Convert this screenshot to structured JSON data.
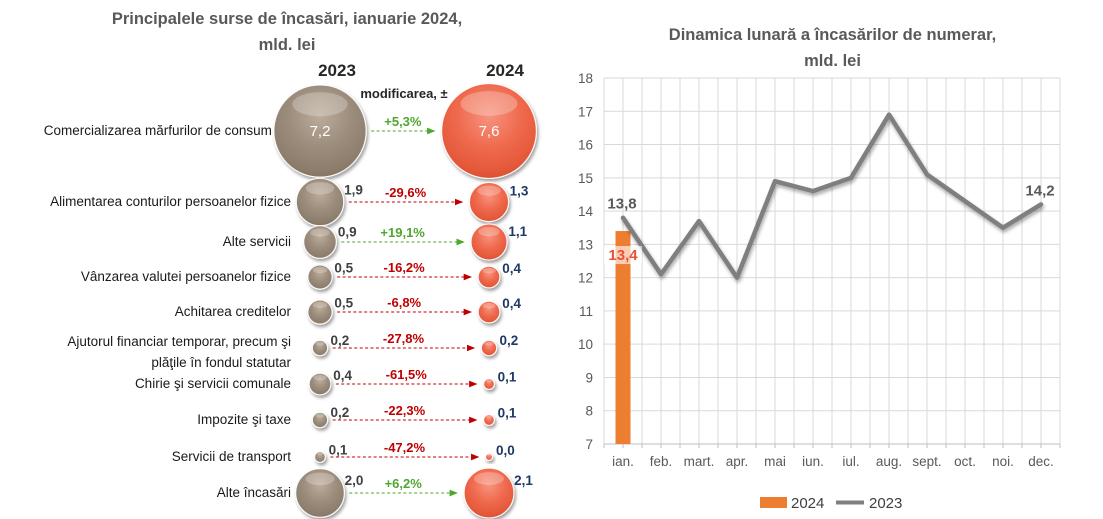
{
  "chart_data": [
    {
      "type": "bubble-comparison",
      "title_lines": [
        "Principalele surse de încasări, ianuarie 2024,",
        "mld. lei"
      ],
      "column_headers": [
        "2023",
        "2024"
      ],
      "change_header": "modificarea, ±",
      "colors": {
        "bubble_2023": "#9D8D7D",
        "bubble_2024": "#EF6A4E",
        "increase": "#4EA72E",
        "decrease": "#C00000",
        "value_2023_text": "#404040",
        "value_2024_text": "#1F3864",
        "title_text": "#595959",
        "header_text": "#262626",
        "category_text": "#1A1A1A"
      },
      "rows": [
        {
          "label_lines": [
            "Comercializarea mărfurilor de consum"
          ],
          "value_2023": 7.2,
          "value_2023_label": "7,2",
          "change": "+5,3%",
          "trend": "up",
          "value_2024": 7.6,
          "value_2024_label": "7,6",
          "labels_inside": true
        },
        {
          "label_lines": [
            "Alimentarea conturilor persoanelor fizice"
          ],
          "value_2023": 1.9,
          "value_2023_label": "1,9",
          "change": "-29,6%",
          "trend": "down",
          "value_2024": 1.3,
          "value_2024_label": "1,3",
          "labels_inside": false
        },
        {
          "label_lines": [
            "Alte servicii"
          ],
          "value_2023": 0.9,
          "value_2023_label": "0,9",
          "change": "+19,1%",
          "trend": "up",
          "value_2024": 1.1,
          "value_2024_label": "1,1",
          "labels_inside": false
        },
        {
          "label_lines": [
            "Vânzarea valutei persoanelor fizice"
          ],
          "value_2023": 0.5,
          "value_2023_label": "0,5",
          "change": "-16,2%",
          "trend": "down",
          "value_2024": 0.4,
          "value_2024_label": "0,4",
          "labels_inside": false
        },
        {
          "label_lines": [
            "Achitarea creditelor"
          ],
          "value_2023": 0.5,
          "value_2023_label": "0,5",
          "change": "-6,8%",
          "trend": "down",
          "value_2024": 0.4,
          "value_2024_label": "0,4",
          "labels_inside": false
        },
        {
          "label_lines": [
            "Ajutorul financiar temporar, precum şi",
            "plăţile în fondul statutar"
          ],
          "value_2023": 0.2,
          "value_2023_label": "0,2",
          "change": "-27,8%",
          "trend": "down",
          "value_2024": 0.2,
          "value_2024_label": "0,2",
          "labels_inside": false
        },
        {
          "label_lines": [
            "Chirie şi servicii comunale"
          ],
          "value_2023": 0.4,
          "value_2023_label": "0,4",
          "change": "-61,5%",
          "trend": "down",
          "value_2024": 0.1,
          "value_2024_label": "0,1",
          "labels_inside": false
        },
        {
          "label_lines": [
            "Impozite şi taxe"
          ],
          "value_2023": 0.2,
          "value_2023_label": "0,2",
          "change": "-22,3%",
          "trend": "down",
          "value_2024": 0.1,
          "value_2024_label": "0,1",
          "labels_inside": false
        },
        {
          "label_lines": [
            "Servicii de transport"
          ],
          "value_2023": 0.1,
          "value_2023_label": "0,1",
          "change": "-47,2%",
          "trend": "down",
          "value_2024": 0.0,
          "value_2024_label": "0,0",
          "labels_inside": false
        },
        {
          "label_lines": [
            "Alte încasări"
          ],
          "value_2023": 2.0,
          "value_2023_label": "2,0",
          "change": "+6,2%",
          "trend": "up",
          "value_2024": 2.1,
          "value_2024_label": "2,1",
          "labels_inside": false
        }
      ]
    },
    {
      "type": "combo-bar-line",
      "title_lines": [
        "Dinamica lunară a încasărilor de numerar,",
        "mld. lei"
      ],
      "categories": [
        "ian.",
        "feb.",
        "mart.",
        "apr.",
        "mai",
        "iun.",
        "iul.",
        "aug.",
        "sept.",
        "oct.",
        "noi.",
        "dec."
      ],
      "ylim": [
        7,
        18
      ],
      "ytick_step": 1,
      "grid": true,
      "legend_position": "bottom",
      "colors": {
        "axis_text": "#595959",
        "gridline": "#D9D9D9",
        "axis_line": "#BFBFBF",
        "data_label_text": "#595959",
        "legend_text": "#404040"
      },
      "series": [
        {
          "name": "2024",
          "type": "bar",
          "color": "#ED7D31",
          "values": [
            13.4,
            null,
            null,
            null,
            null,
            null,
            null,
            null,
            null,
            null,
            null,
            null
          ],
          "data_labels": [
            {
              "index": 0,
              "text": "13,4",
              "color": "#E8503A"
            }
          ]
        },
        {
          "name": "2023",
          "type": "line",
          "color": "#7F7F7F",
          "values": [
            13.8,
            12.1,
            13.7,
            12.0,
            14.9,
            14.6,
            15.0,
            16.9,
            15.1,
            14.3,
            13.5,
            14.2
          ],
          "data_labels": [
            {
              "index": 0,
              "text": "13,8"
            },
            {
              "index": 11,
              "text": "14,2"
            }
          ]
        }
      ]
    }
  ]
}
